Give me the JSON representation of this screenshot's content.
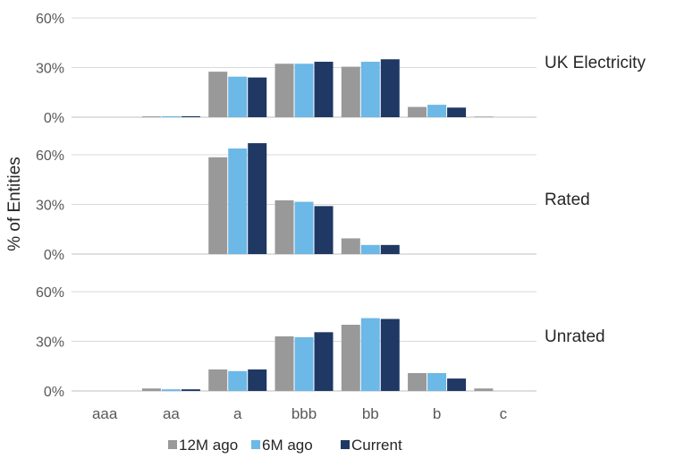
{
  "chart_data": {
    "type": "bar",
    "ylabel": "% of Entities",
    "categories": [
      "aaa",
      "aa",
      "a",
      "bbb",
      "bb",
      "b",
      "c"
    ],
    "yticks": [
      "0%",
      "30%",
      "60%"
    ],
    "ylim": [
      0,
      60
    ],
    "grid": true,
    "legend": {
      "placement": "bottom",
      "entries": [
        "12M ago",
        "6M ago",
        "Current"
      ]
    },
    "colors": [
      "#999999",
      "#6cb8e6",
      "#1f3864"
    ],
    "panels": [
      {
        "title": "UK Electricity",
        "series": [
          {
            "name": "12M ago",
            "values": [
              0,
              0.5,
              27.5,
              32.3,
              30.5,
              6.2,
              0.4
            ]
          },
          {
            "name": "6M ago",
            "values": [
              0,
              0.6,
              24.5,
              32.3,
              33.5,
              7.5,
              0
            ]
          },
          {
            "name": "Current",
            "values": [
              0,
              0.6,
              24.0,
              33.5,
              35.0,
              5.8,
              0
            ]
          }
        ]
      },
      {
        "title": "Rated",
        "series": [
          {
            "name": "12M ago",
            "values": [
              0,
              0,
              58.5,
              32.5,
              9.5,
              0,
              0
            ]
          },
          {
            "name": "6M ago",
            "values": [
              0,
              0,
              63.8,
              31.6,
              5.5,
              0,
              0
            ]
          },
          {
            "name": "Current",
            "values": [
              0,
              0,
              67.0,
              29.0,
              5.5,
              0,
              0
            ]
          }
        ]
      },
      {
        "title": "Unrated",
        "series": [
          {
            "name": "12M ago",
            "values": [
              0,
              1.5,
              13.0,
              33.0,
              40.0,
              10.8,
              1.5
            ]
          },
          {
            "name": "6M ago",
            "values": [
              0,
              1.0,
              12.0,
              32.5,
              44.0,
              10.8,
              0
            ]
          },
          {
            "name": "Current",
            "values": [
              0,
              1.0,
              13.0,
              35.5,
              43.5,
              7.5,
              0
            ]
          }
        ]
      }
    ]
  }
}
